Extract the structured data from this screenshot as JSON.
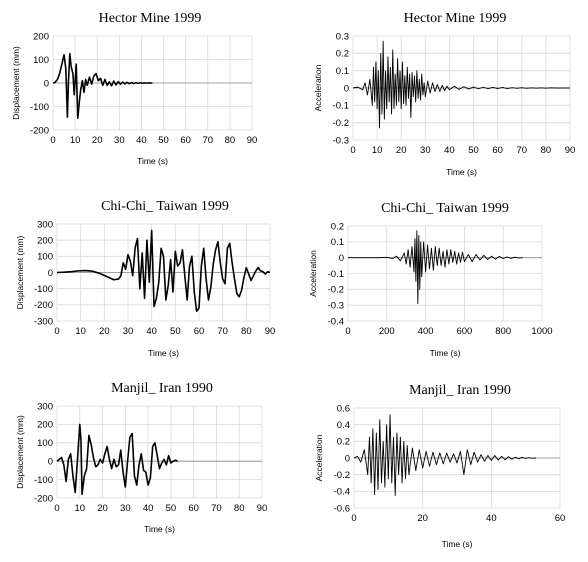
{
  "chart_data": [
    {
      "type": "line",
      "title": "Hector Mine 1999",
      "xlabel": "Time (s)",
      "ylabel": "Displacement (mm)",
      "xlim": [
        0,
        90
      ],
      "ylim": [
        -200,
        200
      ],
      "xticks": [
        "0",
        "10",
        "20",
        "30",
        "40",
        "50",
        "60",
        "70",
        "80",
        "90"
      ],
      "yticks": [
        "200",
        "100",
        "0",
        "-100",
        "-200"
      ],
      "series": [
        {
          "x": [
            0,
            1,
            2,
            3,
            4,
            5,
            5.8,
            6.5,
            7,
            7.6,
            8.2,
            9,
            9.6,
            10.5,
            11.2,
            11.8,
            12.5,
            13.3,
            14,
            14.8,
            15.5,
            16.5,
            17.5,
            18.5,
            19.5,
            20.5,
            21.5,
            22.5,
            23.5,
            24.5,
            25.5,
            26.5,
            27.5,
            28.5,
            29.5,
            30.5,
            31.5,
            32.5,
            33.5,
            34.5,
            35.5,
            36.5,
            37.5,
            38.5,
            39.5,
            40.5,
            41.5,
            42.5,
            43.5,
            44.5,
            45
          ],
          "y": [
            0,
            3,
            15,
            40,
            80,
            120,
            60,
            -145,
            10,
            125,
            70,
            40,
            -50,
            80,
            -150,
            -90,
            -30,
            10,
            -40,
            15,
            -10,
            25,
            -5,
            30,
            40,
            10,
            20,
            -10,
            15,
            -10,
            5,
            -12,
            8,
            -8,
            6,
            -5,
            4,
            -4,
            3,
            -3,
            2,
            -2,
            1,
            -1,
            1,
            -1,
            0.5,
            -0.5,
            0.3,
            0,
            0
          ]
        }
      ]
    },
    {
      "type": "line",
      "title": "Hector Mine 1999",
      "xlabel": "Time (s)",
      "ylabel": "Acceleration",
      "xlim": [
        0,
        90
      ],
      "ylim": [
        -0.3,
        0.3
      ],
      "xticks": [
        "0",
        "10",
        "20",
        "30",
        "40",
        "50",
        "60",
        "70",
        "80",
        "90"
      ],
      "yticks": [
        "0.3",
        "0.2",
        "0.1",
        "0",
        "-0.1",
        "-0.2",
        "-0.3"
      ],
      "series": [
        {
          "x": [
            0,
            2,
            4,
            5,
            6,
            7,
            8,
            8.5,
            9,
            9.5,
            10,
            10.5,
            11,
            11.5,
            12,
            12.5,
            13,
            13.5,
            14,
            14.5,
            15,
            15.5,
            16,
            16.5,
            17,
            17.5,
            18,
            18.5,
            19,
            19.5,
            20,
            20.5,
            21,
            21.5,
            22,
            22.5,
            23,
            23.5,
            24,
            24.5,
            25,
            25.5,
            26,
            26.5,
            27,
            27.5,
            28,
            28.5,
            29,
            29.5,
            30,
            31,
            32,
            33,
            34,
            35,
            36,
            37,
            38,
            39,
            40,
            42,
            44,
            46,
            48,
            50,
            52,
            54,
            56,
            58,
            60,
            62,
            64,
            66,
            68,
            70,
            72,
            74,
            76,
            78,
            80,
            82,
            84,
            86,
            88,
            90
          ],
          "y": [
            0,
            0.005,
            -0.01,
            0.03,
            -0.04,
            0.05,
            -0.1,
            0.12,
            -0.08,
            0.15,
            -0.12,
            0.1,
            -0.23,
            0.2,
            -0.15,
            0.27,
            -0.18,
            0.1,
            -0.12,
            0.18,
            -0.08,
            0.12,
            -0.15,
            0.22,
            -0.12,
            0.08,
            -0.1,
            0.17,
            -0.08,
            0.1,
            -0.12,
            0.15,
            -0.09,
            0.07,
            -0.1,
            0.12,
            -0.06,
            0.08,
            -0.17,
            0.09,
            -0.05,
            0.07,
            -0.08,
            0.1,
            -0.06,
            0.05,
            -0.07,
            0.08,
            -0.04,
            0.03,
            -0.05,
            0.04,
            -0.03,
            0.03,
            -0.02,
            0.02,
            -0.02,
            0.015,
            -0.015,
            0.01,
            -0.01,
            0.01,
            -0.008,
            0.008,
            -0.006,
            0.006,
            -0.005,
            0.005,
            -0.004,
            0.004,
            -0.003,
            0.003,
            -0.003,
            0.002,
            -0.002,
            0.002,
            -0.002,
            0.001,
            -0.001,
            0.001,
            -0.001,
            0.001,
            0,
            0,
            0,
            0
          ]
        }
      ]
    },
    {
      "type": "line",
      "title": "Chi-Chi_ Taiwan 1999",
      "xlabel": "Time (s)",
      "ylabel": "Displacement (mm)",
      "xlim": [
        0,
        90
      ],
      "ylim": [
        -300,
        300
      ],
      "xticks": [
        "0",
        "10",
        "20",
        "30",
        "40",
        "50",
        "60",
        "70",
        "80",
        "90"
      ],
      "yticks": [
        "300",
        "200",
        "100",
        "0",
        "-100",
        "-200",
        "-300"
      ],
      "series": [
        {
          "x": [
            0,
            3,
            6,
            9,
            12,
            15,
            18,
            21,
            24,
            26,
            27,
            28,
            29,
            30,
            31,
            32,
            33,
            34,
            35,
            36,
            37,
            38,
            39,
            40,
            41,
            42,
            43,
            44,
            45,
            46,
            47,
            48,
            49,
            50,
            51,
            52,
            53,
            54,
            55,
            56,
            57,
            58,
            59,
            60,
            61,
            62,
            63,
            64,
            65,
            66,
            67,
            68,
            69,
            70,
            71,
            72,
            73,
            74,
            75,
            76,
            77,
            78,
            79,
            80,
            81,
            82,
            83,
            84,
            85,
            86,
            87,
            88,
            89,
            90
          ],
          "y": [
            0,
            2,
            5,
            10,
            12,
            8,
            -5,
            -25,
            -45,
            -40,
            -20,
            60,
            20,
            110,
            70,
            -20,
            150,
            210,
            -100,
            120,
            -160,
            200,
            -60,
            260,
            -210,
            -160,
            -60,
            150,
            100,
            -170,
            -80,
            80,
            -120,
            130,
            40,
            60,
            140,
            -20,
            -170,
            40,
            100,
            -120,
            -240,
            -220,
            40,
            150,
            -40,
            -170,
            -90,
            50,
            140,
            190,
            60,
            -40,
            -70,
            150,
            180,
            60,
            -40,
            -130,
            -150,
            -110,
            -30,
            30,
            -10,
            -50,
            -20,
            10,
            30,
            10,
            5,
            -10,
            5,
            0
          ]
        }
      ]
    },
    {
      "type": "line",
      "title": "Chi-Chi_ Taiwan 1999",
      "xlabel": "Time (s)",
      "ylabel": "Acceleration",
      "xlim": [
        0,
        1000
      ],
      "ylim": [
        -0.4,
        0.2
      ],
      "xticks": [
        "0",
        "200",
        "400",
        "600",
        "800",
        "1000"
      ],
      "yticks": [
        "0.2",
        "0.1",
        "0",
        "-0.1",
        "-0.2",
        "-0.3",
        "-0.4"
      ],
      "series": [
        {
          "x": [
            0,
            50,
            100,
            150,
            200,
            230,
            250,
            270,
            290,
            300,
            310,
            320,
            330,
            340,
            345,
            350,
            355,
            360,
            365,
            370,
            375,
            380,
            390,
            400,
            410,
            420,
            430,
            440,
            450,
            460,
            470,
            480,
            490,
            500,
            510,
            520,
            530,
            540,
            550,
            560,
            570,
            580,
            590,
            600,
            620,
            640,
            660,
            680,
            700,
            720,
            740,
            760,
            780,
            800,
            820,
            840,
            860,
            880,
            900
          ],
          "y": [
            0,
            0,
            0,
            0,
            0.002,
            -0.005,
            0.01,
            -0.02,
            0.03,
            -0.04,
            0.05,
            -0.06,
            0.07,
            -0.09,
            0.12,
            -0.15,
            0.17,
            -0.29,
            0.14,
            -0.2,
            0.1,
            -0.12,
            0.1,
            -0.09,
            0.08,
            -0.07,
            0.06,
            -0.08,
            0.07,
            -0.05,
            0.06,
            -0.05,
            0.04,
            -0.06,
            0.05,
            -0.04,
            0.05,
            -0.03,
            0.04,
            -0.04,
            0.03,
            -0.03,
            0.035,
            -0.025,
            0.02,
            -0.025,
            0.02,
            -0.015,
            0.015,
            -0.012,
            0.01,
            -0.01,
            0.008,
            -0.006,
            0.005,
            -0.004,
            0.003,
            -0.002,
            0
          ]
        }
      ]
    },
    {
      "type": "line",
      "title": "Manjil_ Iran 1990",
      "xlabel": "Time (s)",
      "ylabel": "Displacement (mm)",
      "xlim": [
        0,
        90
      ],
      "ylim": [
        -200,
        300
      ],
      "xticks": [
        "0",
        "10",
        "20",
        "30",
        "40",
        "50",
        "60",
        "70",
        "80",
        "90"
      ],
      "yticks": [
        "300",
        "200",
        "100",
        "0",
        "-100",
        "-200"
      ],
      "series": [
        {
          "x": [
            0,
            1,
            2,
            3,
            4,
            5,
            6,
            7,
            8,
            9,
            10,
            10.5,
            11,
            12,
            13,
            14,
            15,
            16,
            17,
            18,
            19,
            20,
            21,
            22,
            23,
            24,
            25,
            26,
            27,
            28,
            29,
            30,
            31,
            32,
            33,
            34,
            35,
            36,
            37,
            38,
            39,
            40,
            41,
            42,
            43,
            44,
            45,
            46,
            47,
            48,
            49,
            50,
            51,
            52,
            53
          ],
          "y": [
            0,
            10,
            20,
            -20,
            -110,
            10,
            40,
            -80,
            -170,
            10,
            200,
            120,
            -180,
            -80,
            -40,
            140,
            90,
            20,
            -30,
            -20,
            10,
            -10,
            40,
            80,
            10,
            -40,
            10,
            -30,
            -20,
            60,
            -60,
            -140,
            0,
            130,
            150,
            -80,
            -130,
            -20,
            40,
            -50,
            -60,
            -130,
            -90,
            80,
            100,
            30,
            -40,
            -10,
            10,
            -20,
            30,
            -10,
            0,
            5,
            0
          ]
        }
      ]
    },
    {
      "type": "line",
      "title": "Manjil_ Iran 1990",
      "xlabel": "Time (s)",
      "ylabel": "Acceleration",
      "xlim": [
        0,
        60
      ],
      "ylim": [
        -0.6,
        0.6
      ],
      "xticks": [
        "0",
        "20",
        "40",
        "60"
      ],
      "yticks": [
        "0.6",
        "0.4",
        "0.2",
        "0",
        "-0.2",
        "-0.4",
        "-0.6"
      ],
      "series": [
        {
          "x": [
            0,
            1,
            2,
            3,
            4,
            4.5,
            5,
            5.5,
            6,
            6.5,
            7,
            7.5,
            8,
            8.5,
            9,
            9.5,
            10,
            10.5,
            11,
            11.5,
            12,
            12.5,
            13,
            13.5,
            14,
            14.5,
            15,
            15.5,
            16,
            17,
            18,
            19,
            20,
            21,
            22,
            23,
            24,
            25,
            26,
            27,
            28,
            29,
            30,
            31,
            32,
            33,
            34,
            35,
            36,
            37,
            38,
            39,
            40,
            41,
            42,
            43,
            44,
            45,
            46,
            47,
            48,
            49,
            50,
            51,
            52,
            53
          ],
          "y": [
            0,
            0.02,
            -0.05,
            0.1,
            -0.2,
            0.25,
            -0.3,
            0.35,
            -0.44,
            0.3,
            -0.38,
            0.46,
            -0.3,
            0.2,
            -0.35,
            0.4,
            -0.25,
            0.52,
            -0.3,
            0.25,
            -0.45,
            0.3,
            -0.2,
            0.25,
            -0.3,
            0.2,
            -0.25,
            0.15,
            -0.2,
            0.12,
            -0.15,
            0.1,
            -0.12,
            0.08,
            -0.1,
            0.07,
            -0.08,
            0.06,
            -0.07,
            0.06,
            -0.05,
            0.05,
            -0.06,
            0.08,
            -0.2,
            0.1,
            -0.08,
            0.07,
            -0.05,
            0.04,
            -0.04,
            0.03,
            -0.03,
            0.03,
            -0.025,
            0.02,
            -0.02,
            0.015,
            -0.015,
            0.01,
            -0.01,
            0.008,
            -0.005,
            0.004,
            -0.002,
            0
          ]
        }
      ]
    }
  ]
}
